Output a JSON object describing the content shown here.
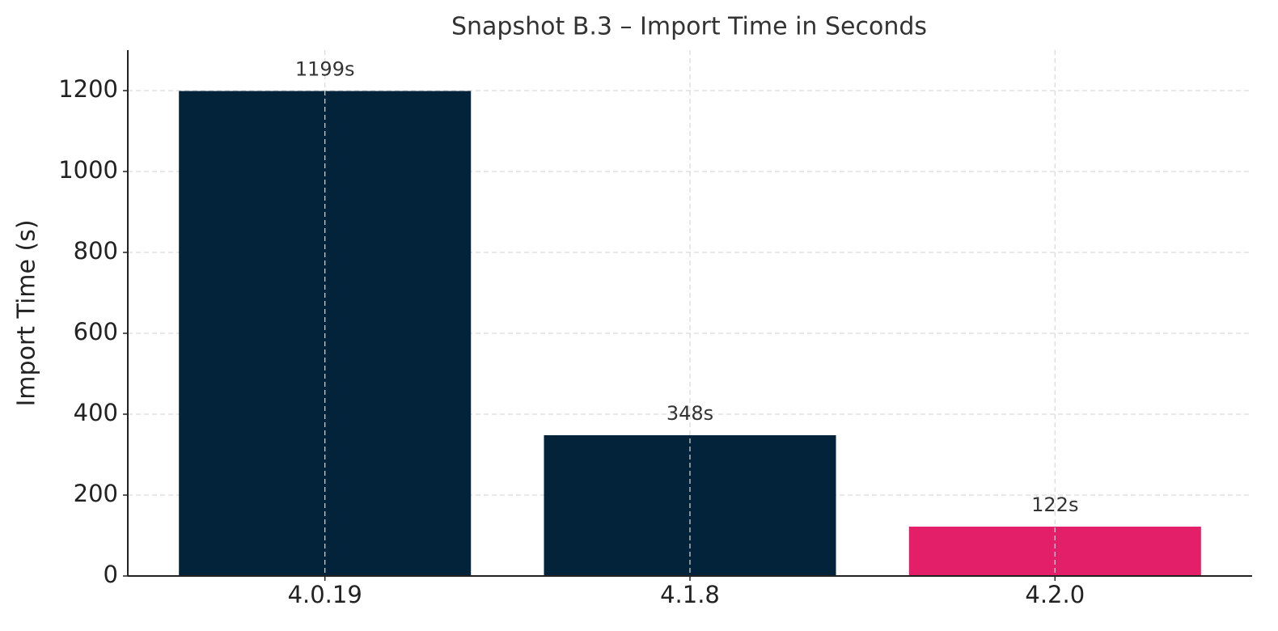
{
  "chart_data": {
    "type": "bar",
    "title": "Snapshot B.3 – Import Time in Seconds",
    "y_label": "Import Time (s)",
    "categories": [
      "4.0.19",
      "4.1.8",
      "4.2.0"
    ],
    "values": [
      1199,
      348,
      122
    ],
    "value_labels": [
      "1199s",
      "348s",
      "122s"
    ],
    "colors": [
      "#03233b",
      "#03233b",
      "#e41f6a"
    ],
    "ylim": [
      0,
      1300
    ],
    "yticks": [
      0,
      200,
      400,
      600,
      800,
      1000,
      1200
    ],
    "grid": true
  }
}
